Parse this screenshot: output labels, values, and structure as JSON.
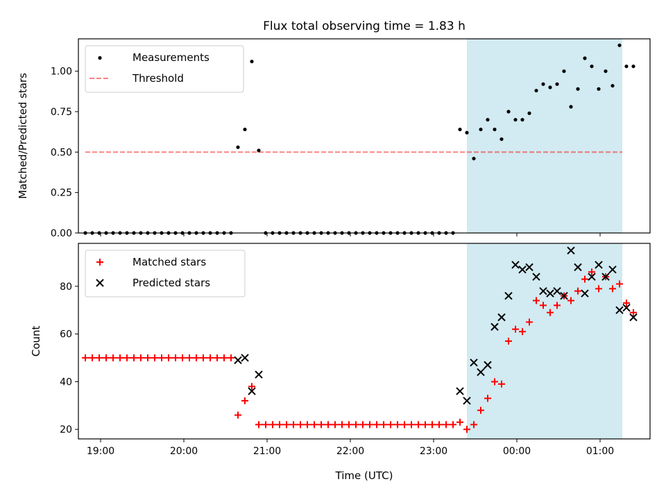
{
  "title": "Flux total observing time = 1.83 h",
  "colors": {
    "shade": "#add8e6",
    "threshold": "#ff0000",
    "measurements": "#000000",
    "matched": "#ff0000",
    "predicted": "#000000"
  },
  "chart_data": [
    {
      "type": "scatter",
      "panel": "top",
      "ylabel": "Matched/Predicted stars",
      "xlim": [
        "18:44",
        "01:36"
      ],
      "ylim": [
        0,
        1.2
      ],
      "y_ticks": [
        0.0,
        0.25,
        0.5,
        0.75,
        1.0
      ],
      "y_tick_labels": [
        "0.00",
        "0.25",
        "0.50",
        "0.75",
        "1.00"
      ],
      "legend": {
        "location": "upper left",
        "entries": [
          "Measurements",
          "Threshold"
        ]
      },
      "shaded_interval": [
        "23:24",
        "01:16"
      ],
      "threshold": {
        "name": "Threshold",
        "value": 0.5,
        "x_range": [
          "18:49",
          "01:16"
        ]
      },
      "series": [
        {
          "name": "Measurements",
          "marker": "dot",
          "points": [
            [
              "18:49",
              0
            ],
            [
              "18:54",
              0
            ],
            [
              "18:59",
              0
            ],
            [
              "19:04",
              0
            ],
            [
              "19:09",
              0
            ],
            [
              "19:14",
              0
            ],
            [
              "19:19",
              0
            ],
            [
              "19:24",
              0
            ],
            [
              "19:29",
              0
            ],
            [
              "19:34",
              0
            ],
            [
              "19:39",
              0
            ],
            [
              "19:44",
              0
            ],
            [
              "19:49",
              0
            ],
            [
              "19:54",
              0
            ],
            [
              "19:59",
              0
            ],
            [
              "20:04",
              0
            ],
            [
              "20:09",
              0
            ],
            [
              "20:14",
              0
            ],
            [
              "20:19",
              0
            ],
            [
              "20:24",
              0
            ],
            [
              "20:29",
              0
            ],
            [
              "20:34",
              0
            ],
            [
              "20:39",
              0.53
            ],
            [
              "20:44",
              0.64
            ],
            [
              "20:49",
              1.06
            ],
            [
              "20:54",
              0.51
            ],
            [
              "20:59",
              0
            ],
            [
              "21:04",
              0
            ],
            [
              "21:09",
              0
            ],
            [
              "21:14",
              0
            ],
            [
              "21:19",
              0
            ],
            [
              "21:24",
              0
            ],
            [
              "21:29",
              0
            ],
            [
              "21:34",
              0
            ],
            [
              "21:39",
              0
            ],
            [
              "21:44",
              0
            ],
            [
              "21:49",
              0
            ],
            [
              "21:54",
              0
            ],
            [
              "21:59",
              0
            ],
            [
              "22:04",
              0
            ],
            [
              "22:09",
              0
            ],
            [
              "22:14",
              0
            ],
            [
              "22:19",
              0
            ],
            [
              "22:24",
              0
            ],
            [
              "22:29",
              0
            ],
            [
              "22:34",
              0
            ],
            [
              "22:39",
              0
            ],
            [
              "22:44",
              0
            ],
            [
              "22:49",
              0
            ],
            [
              "22:54",
              0
            ],
            [
              "22:59",
              0
            ],
            [
              "23:04",
              0
            ],
            [
              "23:09",
              0
            ],
            [
              "23:14",
              0
            ],
            [
              "23:19",
              0.64
            ],
            [
              "23:24",
              0.62
            ],
            [
              "23:29",
              0.46
            ],
            [
              "23:34",
              0.64
            ],
            [
              "23:39",
              0.7
            ],
            [
              "23:44",
              0.64
            ],
            [
              "23:49",
              0.58
            ],
            [
              "23:54",
              0.75
            ],
            [
              "23:59",
              0.7
            ],
            [
              "00:04",
              0.7
            ],
            [
              "00:09",
              0.74
            ],
            [
              "00:14",
              0.88
            ],
            [
              "00:19",
              0.92
            ],
            [
              "00:24",
              0.9
            ],
            [
              "00:29",
              0.92
            ],
            [
              "00:34",
              1.0
            ],
            [
              "00:39",
              0.78
            ],
            [
              "00:44",
              0.89
            ],
            [
              "00:49",
              1.08
            ],
            [
              "00:54",
              1.03
            ],
            [
              "00:59",
              0.89
            ],
            [
              "01:04",
              1.0
            ],
            [
              "01:09",
              0.91
            ],
            [
              "01:14",
              1.16
            ],
            [
              "01:19",
              1.03
            ],
            [
              "01:24",
              1.03
            ]
          ]
        }
      ]
    },
    {
      "type": "scatter",
      "panel": "bottom",
      "xlabel": "Time (UTC)",
      "ylabel": "Count",
      "xlim": [
        "18:44",
        "01:36"
      ],
      "ylim": [
        16,
        98
      ],
      "y_ticks": [
        20,
        40,
        60,
        80
      ],
      "x_tick_labels": [
        "19:00",
        "20:00",
        "21:00",
        "22:00",
        "23:00",
        "00:00",
        "01:00"
      ],
      "legend": {
        "location": "upper left",
        "entries": [
          "Matched stars",
          "Predicted stars"
        ]
      },
      "shaded_interval": [
        "23:24",
        "01:16"
      ],
      "series": [
        {
          "name": "Matched stars",
          "marker": "plus",
          "points": [
            [
              "18:49",
              50
            ],
            [
              "18:54",
              50
            ],
            [
              "18:59",
              50
            ],
            [
              "19:04",
              50
            ],
            [
              "19:09",
              50
            ],
            [
              "19:14",
              50
            ],
            [
              "19:19",
              50
            ],
            [
              "19:24",
              50
            ],
            [
              "19:29",
              50
            ],
            [
              "19:34",
              50
            ],
            [
              "19:39",
              50
            ],
            [
              "19:44",
              50
            ],
            [
              "19:49",
              50
            ],
            [
              "19:54",
              50
            ],
            [
              "19:59",
              50
            ],
            [
              "20:04",
              50
            ],
            [
              "20:09",
              50
            ],
            [
              "20:14",
              50
            ],
            [
              "20:19",
              50
            ],
            [
              "20:24",
              50
            ],
            [
              "20:29",
              50
            ],
            [
              "20:34",
              50
            ],
            [
              "20:39",
              26
            ],
            [
              "20:44",
              32
            ],
            [
              "20:49",
              38
            ],
            [
              "20:54",
              22
            ],
            [
              "20:59",
              22
            ],
            [
              "21:04",
              22
            ],
            [
              "21:09",
              22
            ],
            [
              "21:14",
              22
            ],
            [
              "21:19",
              22
            ],
            [
              "21:24",
              22
            ],
            [
              "21:29",
              22
            ],
            [
              "21:34",
              22
            ],
            [
              "21:39",
              22
            ],
            [
              "21:44",
              22
            ],
            [
              "21:49",
              22
            ],
            [
              "21:54",
              22
            ],
            [
              "21:59",
              22
            ],
            [
              "22:04",
              22
            ],
            [
              "22:09",
              22
            ],
            [
              "22:14",
              22
            ],
            [
              "22:19",
              22
            ],
            [
              "22:24",
              22
            ],
            [
              "22:29",
              22
            ],
            [
              "22:34",
              22
            ],
            [
              "22:39",
              22
            ],
            [
              "22:44",
              22
            ],
            [
              "22:49",
              22
            ],
            [
              "22:54",
              22
            ],
            [
              "22:59",
              22
            ],
            [
              "23:04",
              22
            ],
            [
              "23:09",
              22
            ],
            [
              "23:14",
              22
            ],
            [
              "23:19",
              23
            ],
            [
              "23:24",
              20
            ],
            [
              "23:29",
              22
            ],
            [
              "23:34",
              28
            ],
            [
              "23:39",
              33
            ],
            [
              "23:44",
              40
            ],
            [
              "23:49",
              39
            ],
            [
              "23:54",
              57
            ],
            [
              "23:59",
              62
            ],
            [
              "00:04",
              61
            ],
            [
              "00:09",
              65
            ],
            [
              "00:14",
              74
            ],
            [
              "00:19",
              72
            ],
            [
              "00:24",
              69
            ],
            [
              "00:29",
              72
            ],
            [
              "00:34",
              76
            ],
            [
              "00:39",
              74
            ],
            [
              "00:44",
              78
            ],
            [
              "00:49",
              83
            ],
            [
              "00:54",
              86
            ],
            [
              "00:59",
              79
            ],
            [
              "01:04",
              84
            ],
            [
              "01:09",
              79
            ],
            [
              "01:14",
              81
            ],
            [
              "01:19",
              73
            ],
            [
              "01:24",
              69
            ]
          ]
        },
        {
          "name": "Predicted stars",
          "marker": "x",
          "points": [
            [
              "20:39",
              49
            ],
            [
              "20:44",
              50
            ],
            [
              "20:49",
              36
            ],
            [
              "20:54",
              43
            ],
            [
              "23:19",
              36
            ],
            [
              "23:24",
              32
            ],
            [
              "23:29",
              48
            ],
            [
              "23:34",
              44
            ],
            [
              "23:39",
              47
            ],
            [
              "23:44",
              63
            ],
            [
              "23:49",
              67
            ],
            [
              "23:54",
              76
            ],
            [
              "23:59",
              89
            ],
            [
              "00:04",
              87
            ],
            [
              "00:09",
              88
            ],
            [
              "00:14",
              84
            ],
            [
              "00:19",
              78
            ],
            [
              "00:24",
              77
            ],
            [
              "00:29",
              78
            ],
            [
              "00:34",
              76
            ],
            [
              "00:39",
              95
            ],
            [
              "00:44",
              88
            ],
            [
              "00:49",
              77
            ],
            [
              "00:54",
              84
            ],
            [
              "00:59",
              89
            ],
            [
              "01:04",
              84
            ],
            [
              "01:09",
              87
            ],
            [
              "01:14",
              70
            ],
            [
              "01:19",
              71
            ],
            [
              "01:24",
              67
            ]
          ]
        }
      ]
    }
  ]
}
